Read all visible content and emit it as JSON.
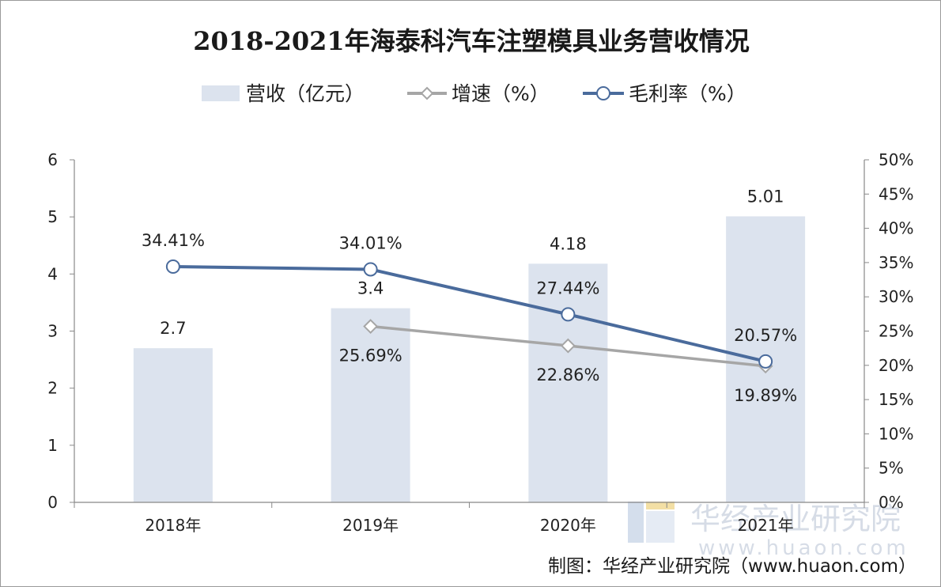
{
  "chart_data": {
    "type": "bar",
    "title": "2018-2021年海泰科汽车注塑模具业务营收情况",
    "categories": [
      "2018年",
      "2019年",
      "2020年",
      "2021年"
    ],
    "series": [
      {
        "name": "营收（亿元）",
        "kind": "bar",
        "axis": "left",
        "values": [
          2.7,
          3.4,
          4.18,
          5.01
        ],
        "labels": [
          "2.7",
          "3.4",
          "4.18",
          "5.01"
        ],
        "color": "#dce3ee"
      },
      {
        "name": "增速（%）",
        "kind": "line",
        "axis": "right",
        "values": [
          null,
          25.69,
          22.86,
          19.89
        ],
        "labels": [
          "",
          "25.69%",
          "22.86%",
          "19.89%"
        ],
        "marker": "diamond",
        "color": "#a6a6a6"
      },
      {
        "name": "毛利率（%）",
        "kind": "line",
        "axis": "right",
        "values": [
          34.41,
          34.01,
          27.44,
          20.57
        ],
        "labels": [
          "34.41%",
          "34.01%",
          "27.44%",
          "20.57%"
        ],
        "marker": "circle",
        "color": "#4a6b9c"
      }
    ],
    "y_left": {
      "range": [
        0,
        6
      ],
      "ticks": [
        0,
        1,
        2,
        3,
        4,
        5,
        6
      ],
      "tick_labels": [
        "0",
        "1",
        "2",
        "3",
        "4",
        "5",
        "6"
      ]
    },
    "y_right": {
      "range": [
        0,
        50
      ],
      "ticks": [
        0,
        5,
        10,
        15,
        20,
        25,
        30,
        35,
        40,
        45,
        50
      ],
      "tick_labels": [
        "0%",
        "5%",
        "10%",
        "15%",
        "20%",
        "25%",
        "30%",
        "35%",
        "40%",
        "45%",
        "50%"
      ]
    },
    "grid": false,
    "legend_position": "top-center"
  },
  "watermark": {
    "name": "华经产业研究院",
    "url": "www.huaon.com"
  },
  "source_note": "制图：华经产业研究院（www.huaon.com）"
}
